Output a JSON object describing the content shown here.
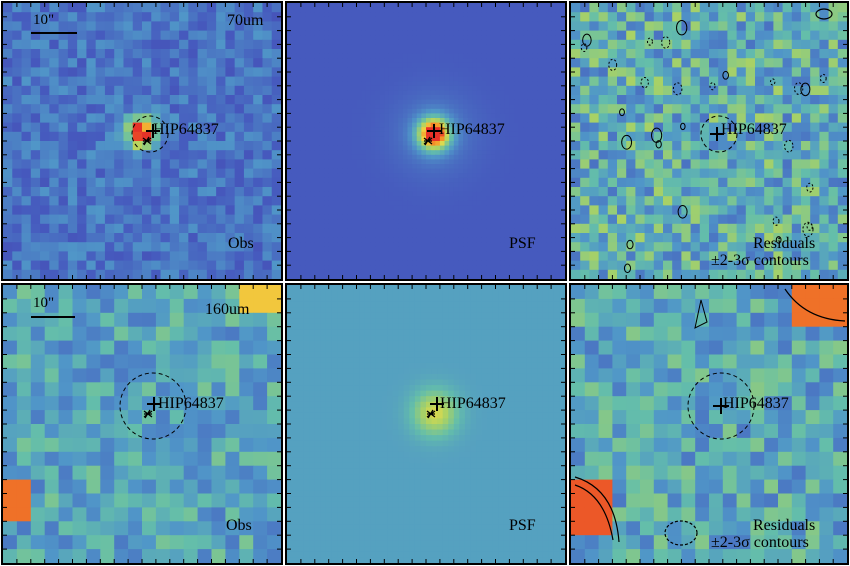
{
  "target_name": "HIP64837",
  "scale_label": "10\"",
  "rows": [
    {
      "band": "70um",
      "panels": [
        {
          "kind": "obs",
          "label": "Obs"
        },
        {
          "kind": "psf",
          "label": "PSF"
        },
        {
          "kind": "res",
          "label_line1": "Residuals",
          "label_line2": "±2-3σ contours"
        }
      ]
    },
    {
      "band": "160um",
      "panels": [
        {
          "kind": "obs",
          "label": "Obs"
        },
        {
          "kind": "psf",
          "label": "PSF"
        },
        {
          "kind": "res",
          "label_line1": "Residuals",
          "label_line2": "±2-3σ contours"
        }
      ]
    }
  ],
  "colors": {
    "bg_obs": "#4a7fbf",
    "bg_psf70": "#3f6ac0",
    "bg_psf160": "#4f9ec5",
    "hot": "#e8402a",
    "warm": "#f5a623"
  }
}
